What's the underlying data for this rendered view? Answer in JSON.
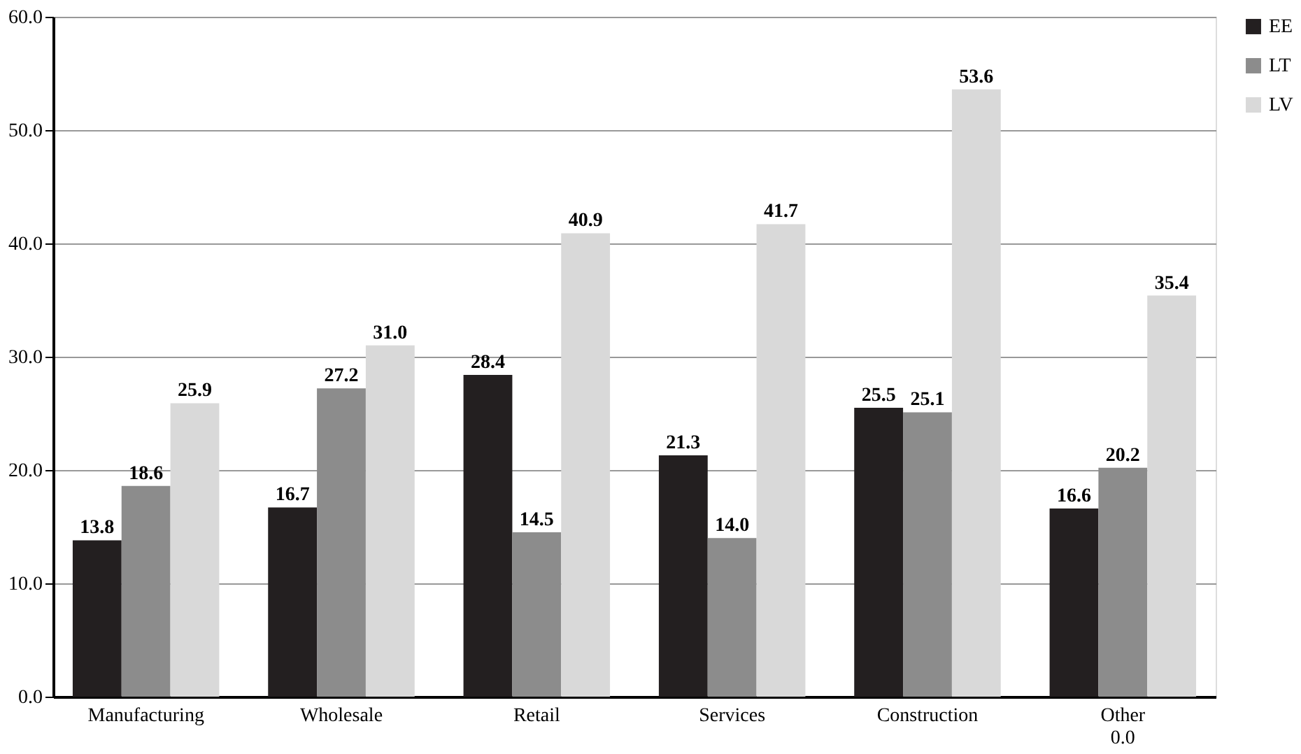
{
  "chart_data": {
    "type": "bar",
    "categories": [
      "Manufacturing",
      "Wholesale",
      "Retail",
      "Services",
      "Construction",
      "Other 0.0"
    ],
    "series": [
      {
        "name": "EE",
        "color": "#231f20",
        "values": [
          13.8,
          16.7,
          28.4,
          21.3,
          25.5,
          16.6
        ],
        "value_labels": [
          "13.8",
          "16.7",
          "28.4",
          "21.3",
          "25.5",
          "16.6"
        ]
      },
      {
        "name": "LT",
        "color": "#8c8c8c",
        "values": [
          18.6,
          27.2,
          14.5,
          14.0,
          25.1,
          20.2
        ],
        "value_labels": [
          "18.6",
          "27.2",
          "14.5",
          "14.0",
          "25.1",
          "20.2"
        ]
      },
      {
        "name": "LV",
        "color": "#d9d9d9",
        "values": [
          25.9,
          31.0,
          40.9,
          41.7,
          53.6,
          35.4
        ],
        "value_labels": [
          "25.9",
          "31.0",
          "40.9",
          "41.7",
          "53.6",
          "35.4"
        ]
      }
    ],
    "ylim": [
      0,
      60
    ],
    "yticks": [
      {
        "value": 0,
        "label": "0.0"
      },
      {
        "value": 10,
        "label": "10.0"
      },
      {
        "value": 20,
        "label": "20.0"
      },
      {
        "value": 30,
        "label": "30.0"
      },
      {
        "value": 40,
        "label": "40.0"
      },
      {
        "value": 50,
        "label": "50.0"
      },
      {
        "value": 60,
        "label": "60.0"
      }
    ],
    "grid": "y",
    "legend": "right"
  }
}
